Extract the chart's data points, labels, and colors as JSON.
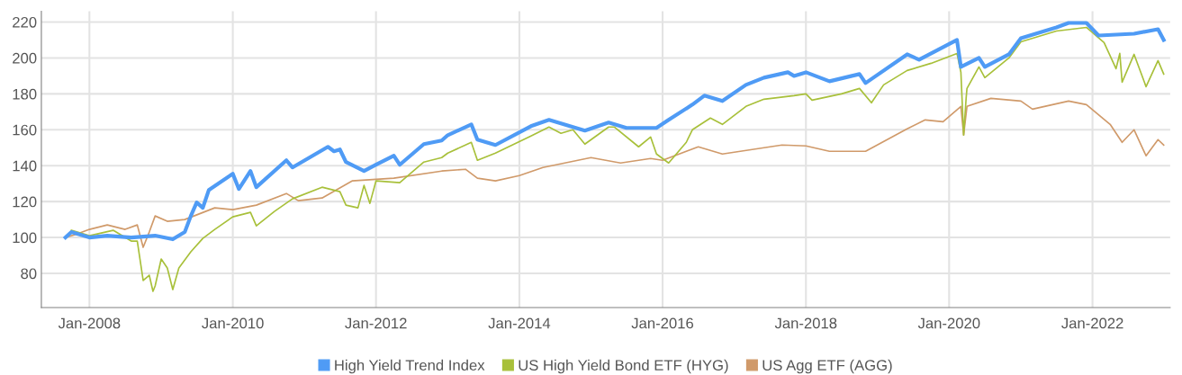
{
  "chart_data": {
    "type": "line",
    "xlim": [
      "2007-05",
      "2023-02"
    ],
    "ylim": [
      61,
      226
    ],
    "xticks": [
      {
        "value": "2008-01",
        "label": "Jan-2008"
      },
      {
        "value": "2010-01",
        "label": "Jan-2010"
      },
      {
        "value": "2012-01",
        "label": "Jan-2012"
      },
      {
        "value": "2014-01",
        "label": "Jan-2014"
      },
      {
        "value": "2016-01",
        "label": "Jan-2016"
      },
      {
        "value": "2018-01",
        "label": "Jan-2018"
      },
      {
        "value": "2020-01",
        "label": "Jan-2020"
      },
      {
        "value": "2022-01",
        "label": "Jan-2022"
      }
    ],
    "yticks": [
      80,
      100,
      120,
      140,
      160,
      180,
      200,
      220
    ],
    "grid": true,
    "legend": "bottom",
    "marker": "none",
    "line_style": "solid",
    "series": [
      {
        "name": "High Yield Trend Index",
        "color": "#4f9bf5",
        "x": [
          "2007-09",
          "2007-10",
          "2008-01",
          "2008-04",
          "2008-08",
          "2008-12",
          "2009-03",
          "2009-05",
          "2009-06",
          "2009-07",
          "2009-08",
          "2009-09",
          "2010-01",
          "2010-02",
          "2010-04",
          "2010-05",
          "2010-10",
          "2010-11",
          "2011-05",
          "2011-06",
          "2011-07",
          "2011-08",
          "2011-11",
          "2012-01",
          "2012-04",
          "2012-05",
          "2012-09",
          "2012-12",
          "2013-01",
          "2013-05",
          "2013-06",
          "2013-09",
          "2014-03",
          "2014-06",
          "2014-12",
          "2015-04",
          "2015-07",
          "2015-12",
          "2016-02",
          "2016-06",
          "2016-08",
          "2016-11",
          "2017-03",
          "2017-06",
          "2017-10",
          "2017-11",
          "2018-01",
          "2018-05",
          "2018-10",
          "2018-11",
          "2019-06",
          "2019-08",
          "2020-02-10",
          "2020-03",
          "2020-06",
          "2020-07",
          "2020-11",
          "2021-01",
          "2021-07",
          "2021-09",
          "2021-12",
          "2022-02",
          "2022-08",
          "2022-12-01",
          "2022-12-30"
        ],
        "values": [
          100,
          103,
          100,
          101,
          100,
          101,
          99,
          103,
          112,
          119.5,
          116.5,
          126.5,
          135.5,
          127,
          137,
          128,
          143,
          139,
          150.5,
          148,
          149,
          142,
          137,
          140.5,
          145.5,
          140.5,
          152,
          154,
          157,
          163,
          154.5,
          151.5,
          162,
          165.5,
          159.5,
          164,
          161,
          161,
          165.5,
          174,
          179,
          176,
          185,
          189,
          192,
          190,
          192,
          187,
          191,
          186,
          202,
          199,
          210,
          195,
          200,
          195,
          202,
          211,
          217,
          219.5,
          219.5,
          212.5,
          213.5,
          216,
          210
        ]
      },
      {
        "name": "US High Yield Bond ETF (HYG)",
        "color": "#a8c03a",
        "x": [
          "2007-10",
          "2008-01",
          "2008-05",
          "2008-08",
          "2008-09",
          "2008-10",
          "2008-11-01",
          "2008-11-20",
          "2008-12",
          "2009-01",
          "2009-02",
          "2009-03",
          "2009-04",
          "2009-06",
          "2009-08",
          "2009-10",
          "2010-01",
          "2010-04",
          "2010-05",
          "2010-08",
          "2010-11",
          "2011-04",
          "2011-07",
          "2011-08",
          "2011-10",
          "2011-11",
          "2011-12",
          "2012-01",
          "2012-05",
          "2012-09",
          "2012-12",
          "2013-01",
          "2013-05",
          "2013-06",
          "2013-09",
          "2014-03",
          "2014-06",
          "2014-08",
          "2014-10",
          "2014-12",
          "2015-04",
          "2015-05",
          "2015-09",
          "2015-11",
          "2015-12",
          "2016-02",
          "2016-05",
          "2016-06",
          "2016-09",
          "2016-11",
          "2017-03",
          "2017-06",
          "2017-11",
          "2018-01",
          "2018-02",
          "2018-07",
          "2018-10",
          "2018-12",
          "2019-02",
          "2019-06",
          "2019-10",
          "2020-02-10",
          "2020-03-01",
          "2020-03-15",
          "2020-03-28",
          "2020-04",
          "2020-06",
          "2020-07",
          "2020-11",
          "2021-01",
          "2021-07",
          "2021-12",
          "2022-03",
          "2022-05",
          "2022-05-20",
          "2022-06",
          "2022-08",
          "2022-10",
          "2022-12-01",
          "2022-12-30"
        ],
        "values": [
          104,
          101,
          104,
          98,
          98,
          76,
          79,
          70,
          73,
          88,
          83,
          71,
          83,
          92,
          99.5,
          104.5,
          111.5,
          114,
          106.5,
          114.5,
          121.5,
          128,
          125.5,
          118,
          116.5,
          129,
          119,
          131.5,
          130.5,
          142,
          144.5,
          147,
          153,
          143,
          147,
          156.5,
          161.5,
          158,
          160,
          152,
          161.5,
          161.5,
          150.5,
          156,
          146.5,
          141.5,
          153,
          160,
          166.5,
          163,
          173,
          177,
          179,
          180,
          176.5,
          180,
          183,
          175,
          185,
          193,
          197,
          202.5,
          192,
          157,
          178,
          183,
          195,
          189,
          200,
          209,
          215,
          217,
          208.5,
          194,
          202.5,
          186.5,
          202,
          184,
          198.5,
          191
        ]
      },
      {
        "name": "US Agg ETF (AGG)",
        "color": "#d09a6a",
        "x": [
          "2007-09",
          "2007-11",
          "2008-01",
          "2008-04",
          "2008-07",
          "2008-09",
          "2008-10",
          "2008-11",
          "2008-12",
          "2009-02",
          "2009-05",
          "2009-10",
          "2010-01",
          "2010-05",
          "2010-10",
          "2010-12",
          "2011-04",
          "2011-09",
          "2012-04",
          "2012-12",
          "2013-04",
          "2013-06",
          "2013-09",
          "2014-01",
          "2014-05",
          "2015-01",
          "2015-06",
          "2015-11",
          "2016-01",
          "2016-07",
          "2016-11",
          "2017-09",
          "2018-01",
          "2018-05",
          "2018-11",
          "2019-06",
          "2019-09",
          "2019-12",
          "2020-03-01",
          "2020-03-15",
          "2020-04",
          "2020-08",
          "2021-01",
          "2021-03",
          "2021-09",
          "2021-12",
          "2022-04",
          "2022-06",
          "2022-08",
          "2022-10",
          "2022-12-01",
          "2022-12-30"
        ],
        "values": [
          100,
          102,
          104.5,
          107,
          104.5,
          107,
          94.5,
          103,
          112,
          109,
          110,
          116.5,
          115.5,
          118,
          124.5,
          120.5,
          122,
          131.5,
          133,
          137,
          138,
          133,
          131.5,
          134.5,
          139,
          144.5,
          141.5,
          144,
          143,
          150.5,
          146.5,
          151.5,
          151,
          148,
          148,
          160.5,
          165.5,
          164.5,
          173,
          157,
          173,
          177.5,
          176,
          171.5,
          176,
          174,
          163,
          153,
          160,
          145.5,
          154.5,
          151.5
        ]
      }
    ]
  }
}
